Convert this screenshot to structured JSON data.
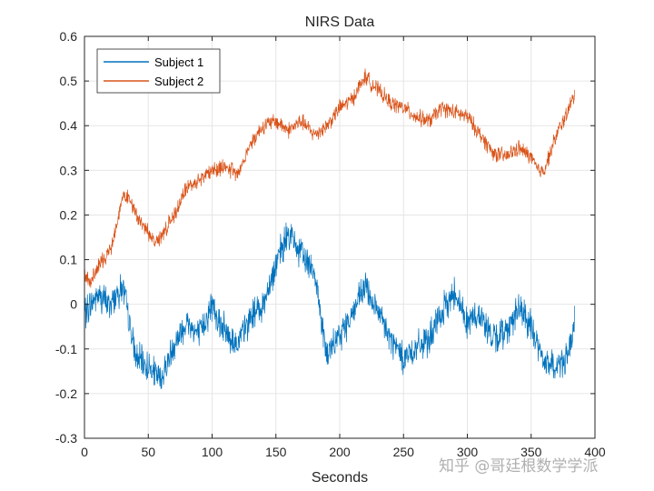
{
  "chart_data": {
    "type": "line",
    "title": "NIRS Data",
    "xlabel": "Seconds",
    "ylabel": "",
    "xlim": [
      0,
      400
    ],
    "ylim": [
      -0.3,
      0.6
    ],
    "xticks": [
      0,
      50,
      100,
      150,
      200,
      250,
      300,
      350,
      400
    ],
    "yticks": [
      -0.3,
      -0.2,
      -0.1,
      0,
      0.1,
      0.2,
      0.3,
      0.4,
      0.5,
      0.6
    ],
    "xtick_labels": [
      "0",
      "50",
      "100",
      "150",
      "200",
      "250",
      "300",
      "350",
      "400"
    ],
    "ytick_labels": [
      "-0.3",
      "-0.2",
      "-0.1",
      "0",
      "0.1",
      "0.2",
      "0.3",
      "0.4",
      "0.5",
      "0.6"
    ],
    "grid": true,
    "legend_position": "top-left",
    "series": [
      {
        "name": "Subject 1",
        "color": "#0072BD",
        "noise_amplitude": 0.03,
        "x": [
          0,
          10,
          20,
          30,
          40,
          50,
          60,
          70,
          80,
          90,
          100,
          110,
          120,
          130,
          140,
          150,
          160,
          170,
          180,
          190,
          200,
          210,
          220,
          230,
          240,
          250,
          260,
          270,
          280,
          290,
          300,
          310,
          320,
          330,
          340,
          350,
          360,
          370,
          380,
          384
        ],
        "values": [
          -0.02,
          0.02,
          0.0,
          0.04,
          -0.12,
          -0.14,
          -0.17,
          -0.09,
          -0.04,
          -0.07,
          0.0,
          -0.06,
          -0.09,
          -0.03,
          0.0,
          0.09,
          0.16,
          0.11,
          0.08,
          -0.12,
          -0.07,
          -0.02,
          0.04,
          -0.02,
          -0.08,
          -0.12,
          -0.1,
          -0.08,
          -0.02,
          0.03,
          -0.04,
          -0.02,
          -0.08,
          -0.06,
          -0.01,
          -0.05,
          -0.13,
          -0.14,
          -0.11,
          -0.04
        ]
      },
      {
        "name": "Subject 2",
        "color": "#D95319",
        "noise_amplitude": 0.015,
        "x": [
          0,
          5,
          10,
          20,
          30,
          35,
          40,
          50,
          55,
          60,
          70,
          80,
          90,
          100,
          110,
          120,
          130,
          140,
          150,
          160,
          170,
          180,
          190,
          200,
          210,
          220,
          230,
          240,
          250,
          260,
          270,
          280,
          290,
          300,
          310,
          320,
          330,
          340,
          350,
          355,
          360,
          370,
          380,
          384
        ],
        "values": [
          0.06,
          0.05,
          0.08,
          0.12,
          0.24,
          0.24,
          0.2,
          0.16,
          0.14,
          0.15,
          0.2,
          0.26,
          0.28,
          0.3,
          0.31,
          0.29,
          0.36,
          0.4,
          0.41,
          0.39,
          0.41,
          0.38,
          0.4,
          0.44,
          0.46,
          0.51,
          0.48,
          0.45,
          0.44,
          0.42,
          0.41,
          0.44,
          0.43,
          0.42,
          0.38,
          0.34,
          0.33,
          0.35,
          0.33,
          0.3,
          0.3,
          0.38,
          0.44,
          0.47
        ]
      }
    ]
  },
  "watermark": "知乎 @哥廷根数学学派"
}
